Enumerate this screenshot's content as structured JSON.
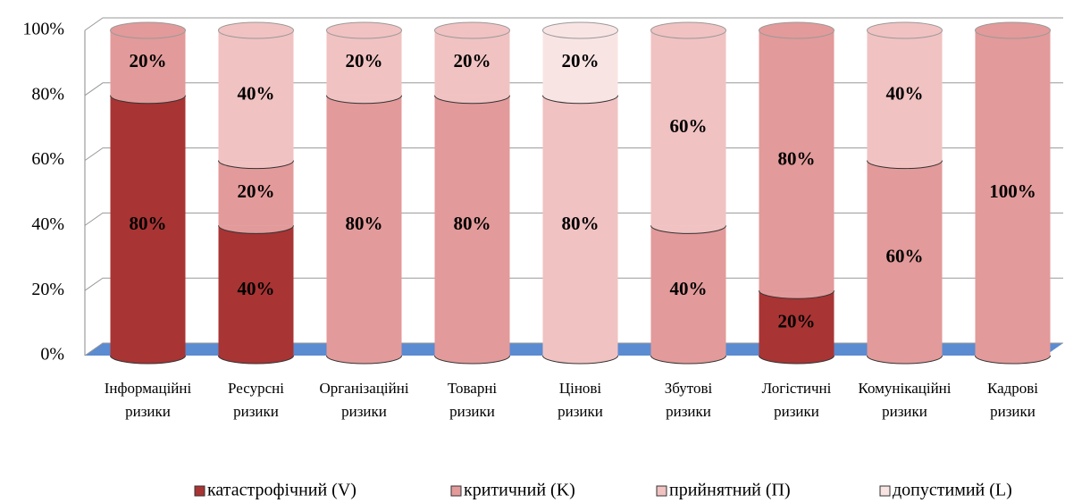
{
  "chart_data": {
    "type": "bar3d_stacked",
    "categories": [
      "Інформаційні ризики",
      "Ресурсні ризики",
      "Організаційні ризики",
      "Товарні ризики",
      "Цінові ризики",
      "Збутові ризики",
      "Логістичні ризики",
      "Комунікаційні ризики",
      "Кадрові ризики"
    ],
    "series": [
      {
        "name": "катастрофічний (V)",
        "color": "#a83434",
        "values": [
          80,
          40,
          0,
          0,
          0,
          0,
          20,
          0,
          0
        ],
        "value_labels": [
          "80%",
          "40%",
          null,
          null,
          null,
          null,
          "20%",
          null,
          null
        ]
      },
      {
        "name": "критичний (K)",
        "color": "#e39a9a",
        "values": [
          20,
          20,
          80,
          80,
          0,
          40,
          80,
          60,
          100
        ],
        "value_labels": [
          "20%",
          "20%",
          "80%",
          "80%",
          null,
          "40%",
          "80%",
          "60%",
          "100%"
        ]
      },
      {
        "name": "прийнятний (П)",
        "color": "#f1c2c2",
        "values": [
          0,
          40,
          20,
          20,
          80,
          60,
          0,
          40,
          0
        ],
        "value_labels": [
          null,
          "40%",
          "20%",
          "20%",
          "80%",
          "60%",
          null,
          "40%",
          null
        ]
      },
      {
        "name": "допустимий (L)",
        "color": "#f9e4e4",
        "values": [
          0,
          0,
          0,
          0,
          20,
          0,
          0,
          0,
          0
        ],
        "value_labels": [
          null,
          null,
          null,
          null,
          "20%",
          null,
          null,
          null,
          null
        ]
      }
    ],
    "ylim": [
      0,
      100
    ],
    "yticks": [
      {
        "value": 0,
        "label": "0%"
      },
      {
        "value": 20,
        "label": "20%"
      },
      {
        "value": 40,
        "label": "40%"
      },
      {
        "value": 60,
        "label": "60%"
      },
      {
        "value": 80,
        "label": "80%"
      },
      {
        "value": 100,
        "label": "100%"
      }
    ],
    "grid": true,
    "legend": "bottom"
  }
}
